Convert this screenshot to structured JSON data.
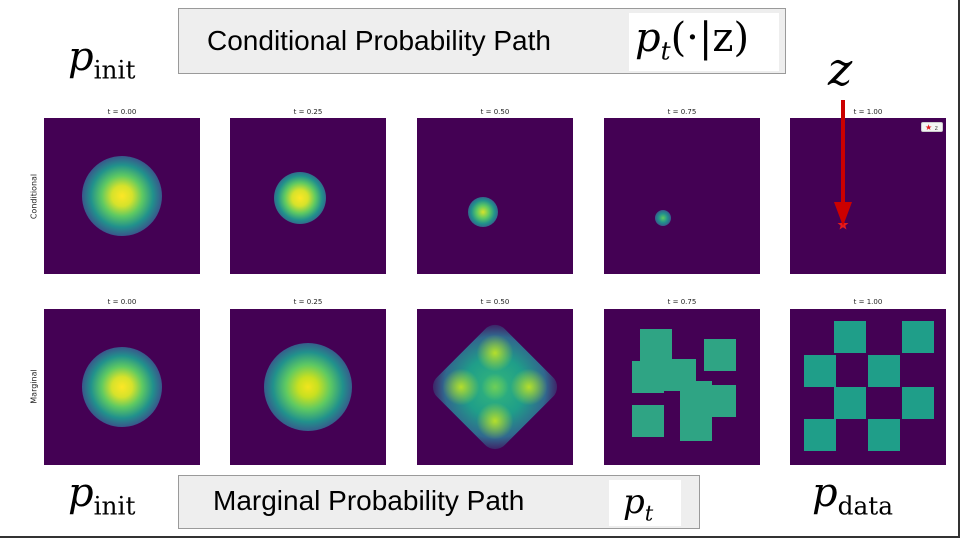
{
  "header": {
    "conditional_title": "Conditional Probability Path",
    "marginal_title": "Marginal Probability Path"
  },
  "math": {
    "p_init_top": {
      "base": "p",
      "sub": "init"
    },
    "p_init_bottom": {
      "base": "p",
      "sub": "init"
    },
    "p_data": {
      "base": "p",
      "sub": "data"
    },
    "p_t_cond": {
      "base": "p",
      "sub": "t",
      "arg": "(·|z)"
    },
    "p_t_marg": {
      "base": "p",
      "sub": "t"
    },
    "z_label": "z"
  },
  "rows": [
    {
      "label": "Conditional",
      "titles": [
        "t = 0.00",
        "t = 0.25",
        "t = 0.50",
        "t = 0.75",
        "t = 1.00"
      ]
    },
    {
      "label": "Marginal",
      "titles": [
        "t = 0.00",
        "t = 0.25",
        "t = 0.50",
        "t = 0.75",
        "t = 1.00"
      ]
    }
  ],
  "legend": {
    "marker": "★",
    "label": "z"
  },
  "colors": {
    "background": "#440154",
    "arrow": "#cc0000",
    "star": "#e41a1c"
  }
}
